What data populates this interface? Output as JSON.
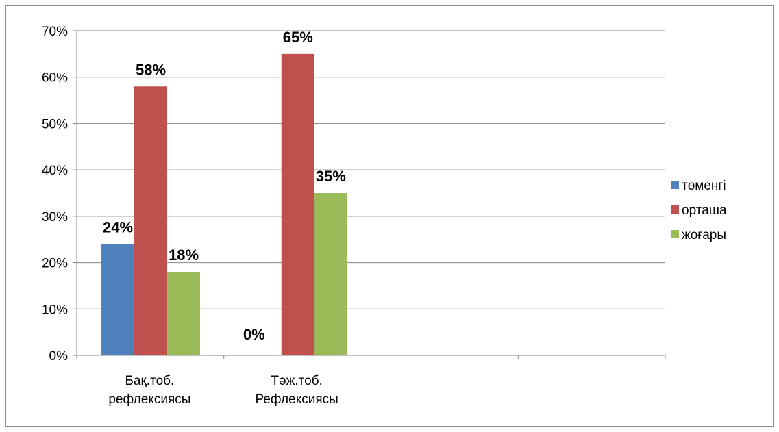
{
  "chart_data": {
    "type": "bar",
    "categories": [
      [
        "Бақ.тоб.",
        "рефлексиясы"
      ],
      [
        "Тәж.тоб.",
        "Рефлексиясы"
      ],
      [
        "",
        ""
      ],
      [
        "",
        ""
      ]
    ],
    "series": [
      {
        "name": "төменгі",
        "color": "#4f81bd",
        "values": [
          24,
          0,
          null,
          null
        ],
        "labels": [
          "24%",
          "0%",
          null,
          null
        ]
      },
      {
        "name": "орташа",
        "color": "#c0504d",
        "values": [
          58,
          65,
          null,
          null
        ],
        "labels": [
          "58%",
          "65%",
          null,
          null
        ]
      },
      {
        "name": "жоғары",
        "color": "#9bbb59",
        "values": [
          18,
          35,
          null,
          null
        ],
        "labels": [
          "18%",
          "35%",
          null,
          null
        ]
      }
    ],
    "y_ticks": [
      "0%",
      "10%",
      "20%",
      "30%",
      "40%",
      "50%",
      "60%",
      "70%"
    ],
    "ylim": [
      0,
      70
    ],
    "grid": true,
    "legend_position": "right"
  }
}
